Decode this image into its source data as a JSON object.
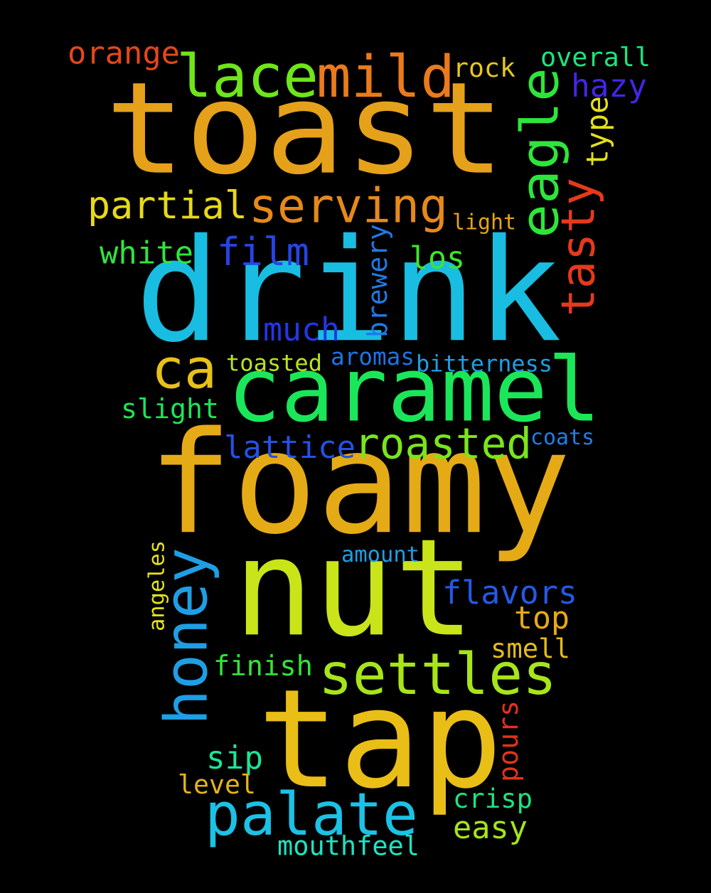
{
  "words": [
    {
      "text": "toast",
      "color": "#e5a11a"
    },
    {
      "text": "drink",
      "color": "#19bde2"
    },
    {
      "text": "foamy",
      "color": "#e5ab17"
    },
    {
      "text": "nut",
      "color": "#c9e51a"
    },
    {
      "text": "tap",
      "color": "#e9be17"
    },
    {
      "text": "caramel",
      "color": "#1be65a"
    },
    {
      "text": "lace",
      "color": "#6fe51a"
    },
    {
      "text": "mild",
      "color": "#ea7a1c"
    },
    {
      "text": "palate",
      "color": "#1bc2e5"
    },
    {
      "text": "settles",
      "color": "#a7e51a"
    },
    {
      "text": "serving",
      "color": "#e6891b"
    },
    {
      "text": "honey",
      "color": "#1f9ee5"
    },
    {
      "text": "eagle",
      "color": "#2ee53c"
    },
    {
      "text": "tasty",
      "color": "#e53a1a"
    },
    {
      "text": "roasted",
      "color": "#7ae51a"
    },
    {
      "text": "ca",
      "color": "#e8c117"
    },
    {
      "text": "partial",
      "color": "#e6d91a"
    },
    {
      "text": "film",
      "color": "#2446e6"
    },
    {
      "text": "much",
      "color": "#2336e6"
    },
    {
      "text": "flavors",
      "color": "#2459e6"
    },
    {
      "text": "lattice",
      "color": "#2451e6"
    },
    {
      "text": "orange",
      "color": "#e5471a"
    },
    {
      "text": "white",
      "color": "#31e53c"
    },
    {
      "text": "slight",
      "color": "#1ce55a"
    },
    {
      "text": "hazy",
      "color": "#4226e6"
    },
    {
      "text": "overall",
      "color": "#1ce57d"
    },
    {
      "text": "rock",
      "color": "#e5c81a"
    },
    {
      "text": "los",
      "color": "#3fe52a"
    },
    {
      "text": "type",
      "color": "#e5e01a"
    },
    {
      "text": "brewery",
      "color": "#1f7ae5"
    },
    {
      "text": "top",
      "color": "#e8a917"
    },
    {
      "text": "finish",
      "color": "#31e534"
    },
    {
      "text": "sip",
      "color": "#1ce597"
    },
    {
      "text": "toasted",
      "color": "#b9e51a"
    },
    {
      "text": "smell",
      "color": "#e5bb1a"
    },
    {
      "text": "easy",
      "color": "#a5e51a"
    },
    {
      "text": "crisp",
      "color": "#1ce57d"
    },
    {
      "text": "level",
      "color": "#e5b41a"
    },
    {
      "text": "pours",
      "color": "#e5321a"
    },
    {
      "text": "angeles",
      "color": "#e5e41a"
    },
    {
      "text": "aromas",
      "color": "#1f73e5"
    },
    {
      "text": "bitterness",
      "color": "#1f9ee5"
    },
    {
      "text": "light",
      "color": "#e5a31a"
    },
    {
      "text": "coats",
      "color": "#1f7fe5"
    },
    {
      "text": "amount",
      "color": "#1f9ee5"
    },
    {
      "text": "mouthfeel",
      "color": "#1ce5c1"
    }
  ]
}
